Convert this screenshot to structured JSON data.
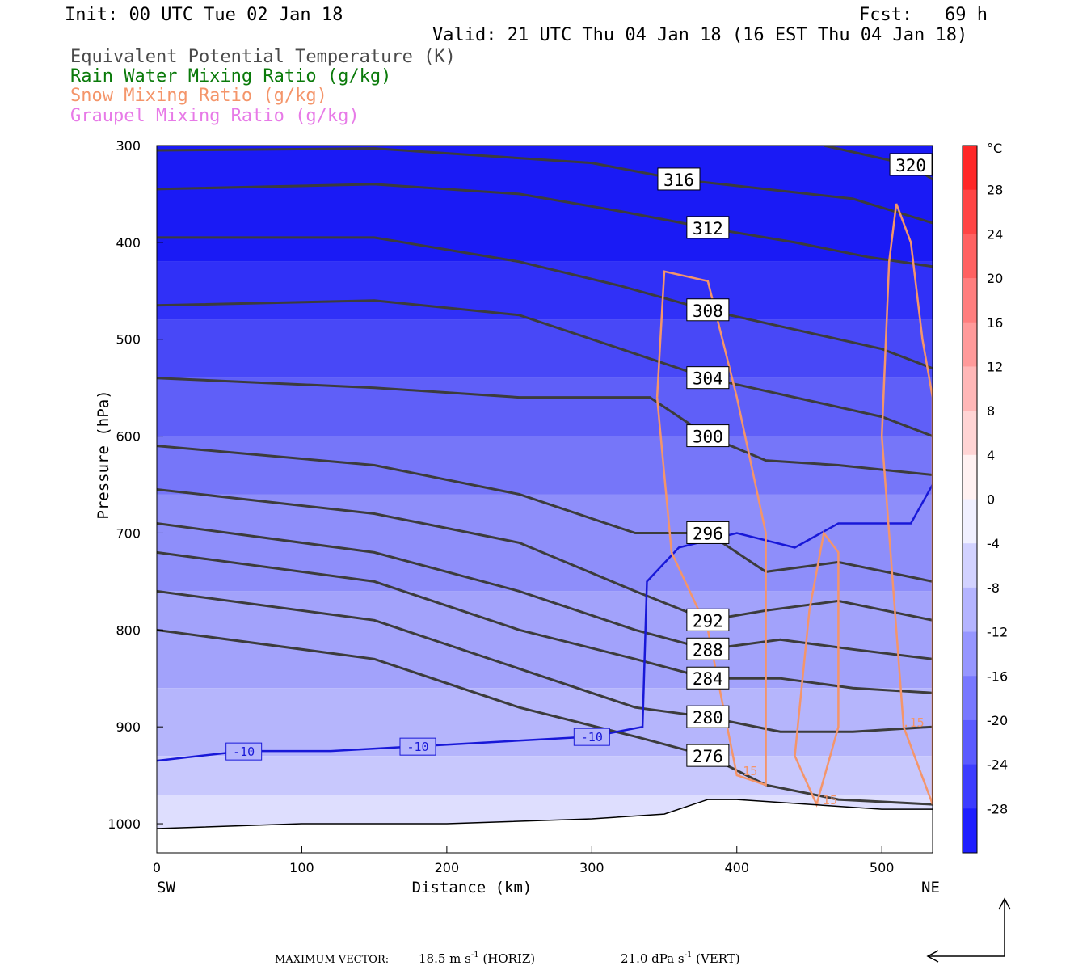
{
  "header": {
    "init": "Init: 00 UTC Tue 02 Jan 18",
    "fcst": "Fcst:   69 h",
    "valid": "Valid: 21 UTC Thu 04 Jan 18 (16 EST Thu 04 Jan 18)"
  },
  "fields": [
    {
      "label": "Equivalent Potential Temperature (K)",
      "color": "#4a4a4a"
    },
    {
      "label": "Rain Water Mixing Ratio (g/kg)",
      "color": "#0a7a0a"
    },
    {
      "label": "Snow Mixing Ratio (g/kg)",
      "color": "#f4956a"
    },
    {
      "label": "Graupel Mixing Ratio (g/kg)",
      "color": "#e77ae7"
    }
  ],
  "footer": {
    "max_vector_label": "MAXIMUM VECTOR:",
    "horiz": "18.5 m s",
    "horiz_unit": "(HORIZ)",
    "vert": "21.0 dPa s",
    "vert_unit": "(VERT)",
    "exp": "-1"
  },
  "chart_data": {
    "type": "heatmap",
    "title": "",
    "xlabel": "Distance (km)",
    "ylabel": "Pressure (hPa)",
    "xlim": [
      0,
      535
    ],
    "ylim": [
      1030,
      300
    ],
    "x_ticks": [
      0,
      100,
      200,
      300,
      400,
      500
    ],
    "y_ticks": [
      300,
      400,
      500,
      600,
      700,
      800,
      900,
      1000
    ],
    "x_end_labels": {
      "left": "SW",
      "right": "NE"
    },
    "colorbar": {
      "unit": "°C",
      "ticks": [
        28,
        24,
        20,
        16,
        12,
        8,
        4,
        0,
        -4,
        -8,
        -12,
        -16,
        -20,
        -24,
        -28
      ],
      "range": [
        -32,
        32
      ]
    },
    "theta_e_contours": [
      {
        "label": "320",
        "points": [
          [
            460,
            300
          ],
          [
            520,
            320
          ],
          [
            535,
            335
          ]
        ]
      },
      {
        "label": "316",
        "points": [
          [
            0,
            305
          ],
          [
            150,
            303
          ],
          [
            300,
            318
          ],
          [
            360,
            335
          ],
          [
            420,
            345
          ],
          [
            480,
            355
          ],
          [
            535,
            380
          ]
        ]
      },
      {
        "label": "312",
        "points": [
          [
            0,
            345
          ],
          [
            150,
            340
          ],
          [
            250,
            350
          ],
          [
            320,
            368
          ],
          [
            380,
            385
          ],
          [
            440,
            400
          ],
          [
            490,
            415
          ],
          [
            535,
            425
          ]
        ]
      },
      {
        "label": "308",
        "points": [
          [
            0,
            395
          ],
          [
            150,
            395
          ],
          [
            250,
            420
          ],
          [
            320,
            445
          ],
          [
            380,
            470
          ],
          [
            440,
            490
          ],
          [
            500,
            510
          ],
          [
            535,
            530
          ]
        ]
      },
      {
        "label": "304",
        "points": [
          [
            0,
            465
          ],
          [
            150,
            460
          ],
          [
            250,
            475
          ],
          [
            320,
            510
          ],
          [
            380,
            540
          ],
          [
            440,
            560
          ],
          [
            500,
            580
          ],
          [
            535,
            600
          ]
        ]
      },
      {
        "label": "300",
        "points": [
          [
            0,
            540
          ],
          [
            150,
            550
          ],
          [
            250,
            560
          ],
          [
            340,
            560
          ],
          [
            380,
            600
          ],
          [
            420,
            625
          ],
          [
            470,
            630
          ],
          [
            535,
            640
          ]
        ]
      },
      {
        "label": "296",
        "points": [
          [
            0,
            610
          ],
          [
            150,
            630
          ],
          [
            250,
            660
          ],
          [
            330,
            700
          ],
          [
            380,
            700
          ],
          [
            420,
            740
          ],
          [
            470,
            730
          ],
          [
            535,
            750
          ]
        ]
      },
      {
        "label": "292",
        "points": [
          [
            0,
            655
          ],
          [
            150,
            680
          ],
          [
            250,
            710
          ],
          [
            330,
            760
          ],
          [
            380,
            790
          ],
          [
            420,
            780
          ],
          [
            470,
            770
          ],
          [
            535,
            790
          ]
        ]
      },
      {
        "label": "288",
        "points": [
          [
            0,
            690
          ],
          [
            150,
            720
          ],
          [
            250,
            760
          ],
          [
            330,
            800
          ],
          [
            380,
            820
          ],
          [
            430,
            810
          ],
          [
            480,
            820
          ],
          [
            535,
            830
          ]
        ]
      },
      {
        "label": "284",
        "points": [
          [
            0,
            720
          ],
          [
            150,
            750
          ],
          [
            250,
            800
          ],
          [
            330,
            830
          ],
          [
            380,
            850
          ],
          [
            430,
            850
          ],
          [
            480,
            860
          ],
          [
            535,
            865
          ]
        ]
      },
      {
        "label": "280",
        "points": [
          [
            0,
            760
          ],
          [
            150,
            790
          ],
          [
            250,
            840
          ],
          [
            330,
            880
          ],
          [
            380,
            890
          ],
          [
            430,
            905
          ],
          [
            480,
            905
          ],
          [
            535,
            900
          ]
        ]
      },
      {
        "label": "276",
        "points": [
          [
            0,
            800
          ],
          [
            150,
            830
          ],
          [
            250,
            880
          ],
          [
            330,
            910
          ],
          [
            380,
            930
          ],
          [
            420,
            960
          ],
          [
            470,
            975
          ],
          [
            535,
            980
          ]
        ]
      }
    ],
    "isotherm_minus10": {
      "label": "-10",
      "points": [
        [
          0,
          935
        ],
        [
          60,
          925
        ],
        [
          120,
          925
        ],
        [
          180,
          920
        ],
        [
          240,
          915
        ],
        [
          300,
          910
        ],
        [
          335,
          900
        ],
        [
          338,
          750
        ],
        [
          360,
          715
        ],
        [
          400,
          700
        ],
        [
          440,
          715
        ],
        [
          470,
          690
        ],
        [
          520,
          690
        ],
        [
          535,
          650
        ]
      ]
    },
    "snow_contours": [
      {
        "label": ".15",
        "points": [
          [
            345,
            560
          ],
          [
            350,
            430
          ],
          [
            380,
            440
          ],
          [
            400,
            560
          ],
          [
            420,
            700
          ],
          [
            420,
            960
          ],
          [
            400,
            950
          ],
          [
            380,
            800
          ],
          [
            355,
            720
          ],
          [
            345,
            560
          ]
        ]
      },
      {
        "label": ".15",
        "points": [
          [
            450,
            780
          ],
          [
            460,
            700
          ],
          [
            470,
            720
          ],
          [
            470,
            900
          ],
          [
            455,
            980
          ],
          [
            440,
            930
          ],
          [
            450,
            780
          ]
        ]
      },
      {
        "label": ".15",
        "points": [
          [
            510,
            360
          ],
          [
            520,
            400
          ],
          [
            528,
            500
          ],
          [
            535,
            560
          ],
          [
            535,
            980
          ],
          [
            515,
            900
          ],
          [
            500,
            600
          ],
          [
            505,
            420
          ],
          [
            510,
            360
          ]
        ]
      }
    ],
    "surface_pressure": [
      [
        0,
        1005
      ],
      [
        100,
        1000
      ],
      [
        200,
        1000
      ],
      [
        300,
        995
      ],
      [
        350,
        990
      ],
      [
        380,
        975
      ],
      [
        400,
        975
      ],
      [
        450,
        980
      ],
      [
        500,
        985
      ],
      [
        535,
        985
      ]
    ]
  }
}
